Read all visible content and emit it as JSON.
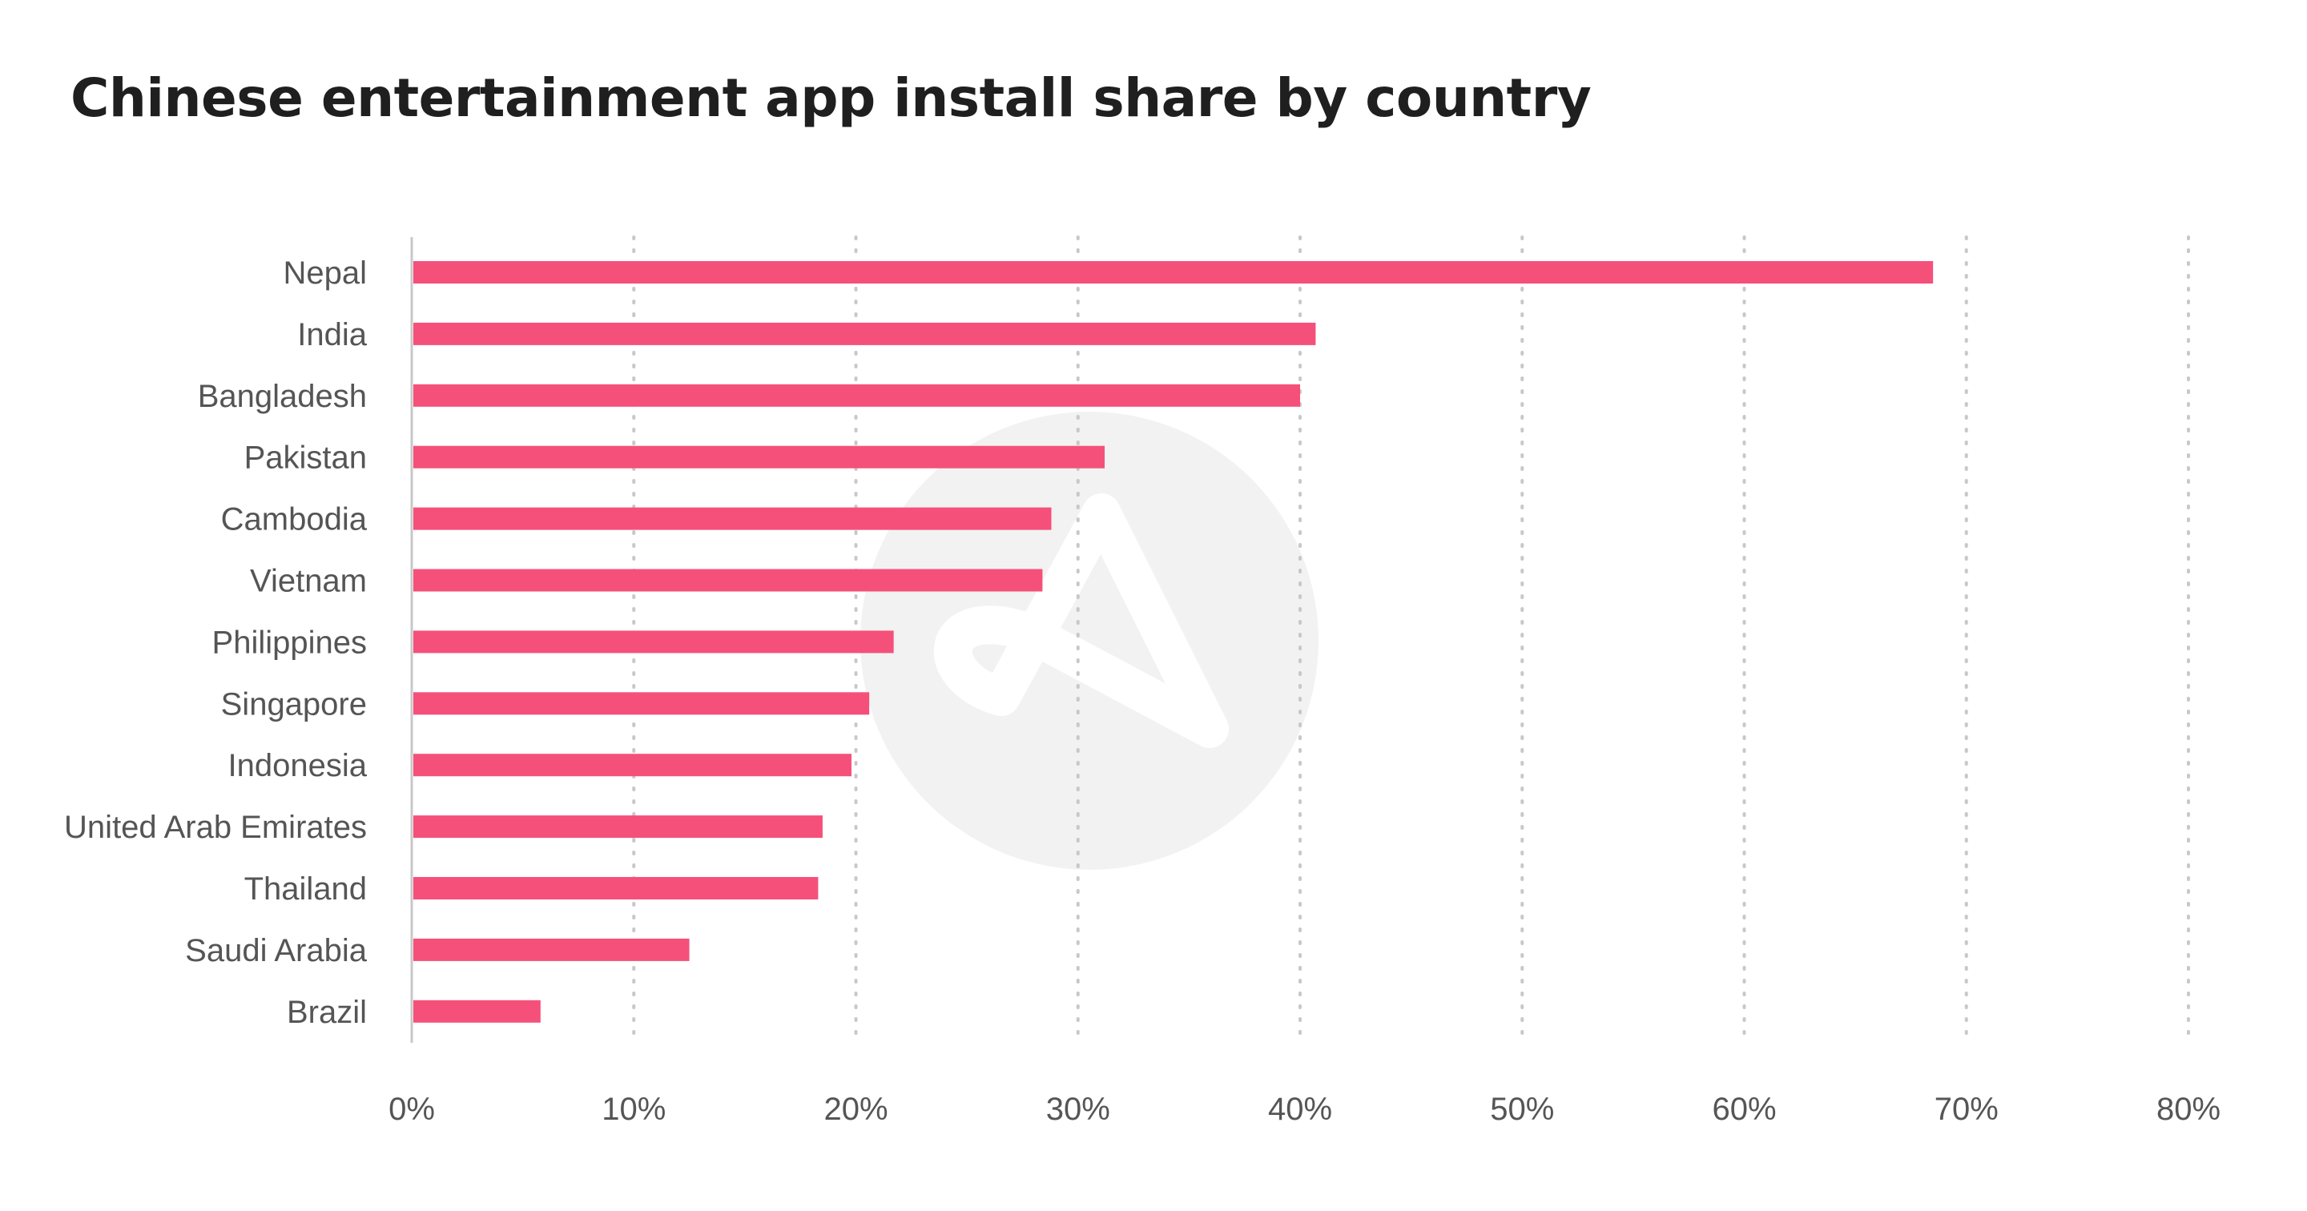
{
  "chart_data": {
    "type": "bar",
    "orientation": "horizontal",
    "title": "Chinese entertainment app install share by country",
    "categories": [
      "Nepal",
      "India",
      "Bangladesh",
      "Pakistan",
      "Cambodia",
      "Vietnam",
      "Philippines",
      "Singapore",
      "Indonesia",
      "United Arab Emirates",
      "Thailand",
      "Saudi Arabia",
      "Brazil"
    ],
    "values": [
      68.5,
      40.7,
      40.0,
      31.2,
      28.8,
      28.4,
      21.7,
      20.6,
      19.8,
      18.5,
      18.3,
      12.5,
      5.8
    ],
    "xticks": [
      "0%",
      "10%",
      "20%",
      "30%",
      "40%",
      "50%",
      "60%",
      "70%",
      "80%"
    ],
    "xlim": [
      0,
      80
    ],
    "xlabel": "",
    "ylabel": "",
    "grid": "vertical dotted",
    "legend": "none",
    "colors": {
      "bar": "#f5507a",
      "grid": "#c8c8c8",
      "axis": "#c8c8c8",
      "text": "#555555",
      "title": "#1f1f1f",
      "watermark": "#f2f2f2"
    }
  },
  "watermark": {
    "icon": "logo-icon"
  }
}
